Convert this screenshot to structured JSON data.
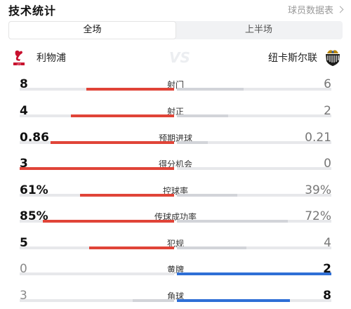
{
  "header": {
    "title": "技术统计",
    "player_data_link": "球员数据表"
  },
  "tabs": [
    {
      "label": "全场",
      "active": true
    },
    {
      "label": "上半场",
      "active": false
    }
  ],
  "teams": {
    "home": "利物浦",
    "away": "纽卡斯尔联",
    "vs": "VS"
  },
  "colors": {
    "home_bar": "#e04438",
    "away_bar": "#2f6fd6",
    "track": "#e7e8eb"
  },
  "stats": [
    {
      "label": "射门",
      "home": "8",
      "away": "6",
      "home_share": 0.57,
      "leader": "home"
    },
    {
      "label": "射正",
      "home": "4",
      "away": "2",
      "home_share": 0.67,
      "leader": "home"
    },
    {
      "label": "预期进球",
      "home": "0.86",
      "away": "0.21",
      "home_share": 0.8,
      "leader": "home"
    },
    {
      "label": "得分机会",
      "home": "3",
      "away": "0",
      "home_share": 1.0,
      "leader": "home"
    },
    {
      "label": "控球率",
      "home": "61%",
      "away": "39%",
      "home_share": 0.61,
      "leader": "home"
    },
    {
      "label": "传球成功率",
      "home": "85%",
      "away": "72%",
      "home_share": 0.85,
      "away_share": 0.72,
      "leader": "home"
    },
    {
      "label": "犯规",
      "home": "5",
      "away": "4",
      "home_share": 0.55,
      "leader": "home"
    },
    {
      "label": "黄牌",
      "home": "0",
      "away": "2",
      "home_share": 0.0,
      "leader": "away"
    },
    {
      "label": "角球",
      "home": "3",
      "away": "8",
      "home_share": 0.27,
      "leader": "away"
    }
  ]
}
